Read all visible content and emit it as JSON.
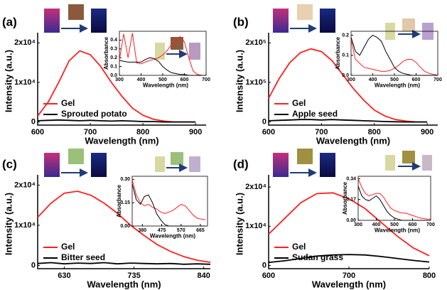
{
  "chart_data": [
    {
      "type": "line",
      "panel_label": "(a)",
      "xlabel": "Wavelength (nm)",
      "ylabel": "Intensity (a.u.)",
      "x": [
        600,
        620,
        640,
        660,
        680,
        700,
        720,
        740,
        760,
        780,
        800,
        820,
        840,
        860,
        880,
        900
      ],
      "series": [
        {
          "name": "Gel",
          "color": "#ff2020",
          "values": [
            1500,
            5000,
            10000,
            15500,
            18000,
            17000,
            14000,
            10000,
            6500,
            3500,
            1700,
            700,
            200,
            0,
            0,
            0
          ]
        },
        {
          "name": "Sprouted potato",
          "color": "#000000",
          "values": [
            300,
            400,
            500,
            400,
            300,
            400,
            300,
            200,
            300,
            200,
            100,
            100,
            0,
            0,
            0,
            0
          ]
        }
      ],
      "xlim": [
        600,
        920
      ],
      "ylim": [
        -800,
        21500
      ],
      "xticks": [
        600,
        700,
        800,
        900
      ],
      "yticks": [
        0,
        {
          "value": 10000,
          "label": "1x10⁴"
        },
        {
          "value": 20000,
          "label": "2x10⁴"
        }
      ]
    },
    {
      "type": "line",
      "panel_label": "(b)",
      "xlabel": "Wavelength (nm)",
      "ylabel": "Intensity (a.u.)",
      "x": [
        600,
        620,
        640,
        660,
        680,
        700,
        720,
        740,
        760,
        780,
        800,
        820,
        840,
        860,
        880,
        900
      ],
      "series": [
        {
          "name": "Gel",
          "color": "#ff2020",
          "values": [
            60000,
            110000,
            150000,
            175000,
            185000,
            178000,
            155000,
            120000,
            85000,
            55000,
            30000,
            15000,
            6000,
            2000,
            0,
            0
          ]
        },
        {
          "name": "Apple seed",
          "color": "#000000",
          "values": [
            3000,
            4000,
            5000,
            6000,
            6000,
            5000,
            6000,
            5000,
            4000,
            3000,
            2000,
            1000,
            500,
            0,
            0,
            0
          ]
        }
      ],
      "xlim": [
        600,
        920
      ],
      "ylim": [
        -8000,
        215000
      ],
      "xticks": [
        600,
        700,
        800,
        900
      ],
      "yticks": [
        0,
        {
          "value": 100000,
          "label": "1x10⁵"
        },
        {
          "value": 200000,
          "label": "2x10⁵"
        }
      ]
    },
    {
      "type": "line",
      "panel_label": "(c)",
      "xlabel": "Wavelength (nm)",
      "ylabel": "Intensity (a.u.)",
      "x": [
        590,
        610,
        630,
        650,
        670,
        690,
        710,
        730,
        750,
        770,
        790,
        810,
        830,
        850
      ],
      "series": [
        {
          "name": "Gel",
          "color": "#ff2020",
          "values": [
            12000,
            15500,
            18000,
            18500,
            17500,
            15500,
            13000,
            10000,
            7500,
            5200,
            3500,
            2200,
            1300,
            800
          ]
        },
        {
          "name": "Bitter seed",
          "color": "#000000",
          "values": [
            500,
            700,
            400,
            600,
            500,
            700,
            400,
            600,
            500,
            400,
            500,
            300,
            400,
            300
          ]
        }
      ],
      "xlim": [
        590,
        850
      ],
      "ylim": [
        -800,
        21500
      ],
      "xticks": [
        630,
        735,
        840
      ],
      "yticks": [
        0,
        {
          "value": 10000,
          "label": "1x10⁴"
        },
        {
          "value": 20000,
          "label": "2x10⁴"
        }
      ]
    },
    {
      "type": "line",
      "panel_label": "(d)",
      "xlabel": "Wavelength (nm)",
      "ylabel": "Intensity (a.u.)",
      "x": [
        600,
        620,
        640,
        660,
        680,
        700,
        720,
        740,
        760,
        780,
        800
      ],
      "series": [
        {
          "name": "Gel",
          "color": "#ff2020",
          "values": [
            8000,
            12000,
            16000,
            18300,
            18500,
            17000,
            14500,
            11000,
            7500,
            4500,
            2500
          ]
        },
        {
          "name": "Sudan grass",
          "color": "#000000",
          "values": [
            800,
            1200,
            1800,
            2400,
            2700,
            2800,
            2700,
            2300,
            1800,
            1300,
            900
          ]
        }
      ],
      "xlim": [
        600,
        800
      ],
      "ylim": [
        -800,
        22000
      ],
      "xticks": [
        600,
        700,
        800
      ],
      "yticks": [
        0,
        {
          "value": 10000,
          "label": "1x10⁴"
        },
        {
          "value": 20000,
          "label": "2x10⁴"
        }
      ]
    },
    {
      "type": "line",
      "xlabel": "Wavelength (nm)",
      "ylabel": "Absorbance",
      "x": [
        300,
        320,
        340,
        360,
        380,
        400,
        420,
        440,
        460,
        480,
        500,
        520,
        540,
        560,
        580,
        600,
        620,
        640,
        660,
        680,
        700
      ],
      "series": [
        {
          "color": "#ff2020",
          "values": [
            0.17,
            0.47,
            0.2,
            0.48,
            0.14,
            0.13,
            0.15,
            0.17,
            0.18,
            0.2,
            0.23,
            0.28,
            0.35,
            0.4,
            0.44,
            0.38,
            0.2,
            0.05,
            0.01,
            0,
            0
          ]
        },
        {
          "color": "#000000",
          "values": [
            0.17,
            0.16,
            0.15,
            0.15,
            0.15,
            0.15,
            0.18,
            0.2,
            0.19,
            0.16,
            0.1,
            0.06,
            0.03,
            0.02,
            0.01,
            0.01,
            0,
            0,
            0,
            0,
            0
          ]
        }
      ],
      "xlim": [
        300,
        700
      ],
      "ylim": [
        0,
        0.5
      ],
      "xticks": [
        300,
        400,
        500,
        600,
        700
      ],
      "yticks": [
        {
          "value": 0,
          "label": "0.0"
        },
        0.1,
        0.2,
        0.3,
        0.4
      ]
    },
    {
      "type": "line",
      "xlabel": "Wavelength (nm)",
      "ylabel": "Absorbance",
      "x": [
        300,
        320,
        340,
        360,
        380,
        400,
        420,
        440,
        460,
        480,
        500,
        520,
        540,
        560,
        580,
        600,
        620,
        640,
        660,
        680,
        700
      ],
      "series": [
        {
          "color": "#ff2020",
          "values": [
            0.18,
            0.08,
            0.06,
            0.04,
            0.035,
            0.03,
            0.025,
            0.02,
            0.02,
            0.025,
            0.035,
            0.05,
            0.07,
            0.08,
            0.08,
            0.065,
            0.04,
            0.02,
            0.01,
            0.005,
            0
          ]
        },
        {
          "color": "#000000",
          "values": [
            0.19,
            0.12,
            0.1,
            0.14,
            0.18,
            0.2,
            0.19,
            0.17,
            0.12,
            0.08,
            0.04,
            0.02,
            0.01,
            0.005,
            0,
            0,
            0,
            0,
            0,
            0,
            0
          ]
        }
      ],
      "xlim": [
        300,
        700
      ],
      "ylim": [
        0,
        0.22
      ],
      "xticks": [
        300,
        400,
        500,
        600,
        700
      ],
      "yticks": [
        {
          "value": 0,
          "label": "0.0"
        },
        0.1,
        0.2
      ]
    },
    {
      "type": "line",
      "xlabel": "Wavelength (nm)",
      "ylabel": "Absorbance",
      "x": [
        330,
        350,
        370,
        390,
        410,
        430,
        450,
        470,
        490,
        510,
        530,
        550,
        570,
        590,
        610,
        630,
        650,
        670,
        690
      ],
      "series": [
        {
          "color": "#ff2020",
          "values": [
            0.3,
            0.2,
            0.15,
            0.13,
            0.14,
            0.12,
            0.11,
            0.09,
            0.08,
            0.09,
            0.1,
            0.12,
            0.14,
            0.13,
            0.1,
            0.07,
            0.05,
            0.045,
            0.04
          ]
        },
        {
          "color": "#000000",
          "values": [
            0.27,
            0.17,
            0.14,
            0.19,
            0.2,
            0.15,
            0.08,
            0.04,
            0.01,
            0,
            0,
            0,
            0,
            0,
            0,
            0,
            0,
            0,
            0
          ]
        }
      ],
      "xlim": [
        330,
        700
      ],
      "ylim": [
        0,
        0.32
      ],
      "xticks": [
        380,
        475,
        570,
        665
      ],
      "yticks": [
        {
          "value": 0,
          "label": "0.00"
        },
        0.15,
        {
          "value": 0.3,
          "label": "0.30"
        }
      ]
    },
    {
      "type": "line",
      "xlabel": "Wavelength (nm)",
      "ylabel": "Absorbance",
      "x": [
        300,
        320,
        340,
        360,
        380,
        400,
        420,
        440,
        460,
        480,
        500,
        520,
        540,
        560,
        580,
        600,
        620,
        640,
        660,
        680,
        700
      ],
      "series": [
        {
          "color": "#ff2020",
          "values": [
            0.34,
            0.27,
            0.22,
            0.2,
            0.21,
            0.22,
            0.22,
            0.19,
            0.14,
            0.1,
            0.08,
            0.07,
            0.06,
            0.06,
            0.05,
            0.04,
            0.03,
            0.02,
            0.015,
            0.01,
            0.01
          ]
        },
        {
          "color": "#000000",
          "values": [
            0.28,
            0.2,
            0.17,
            0.16,
            0.18,
            0.2,
            0.17,
            0.12,
            0.07,
            0.04,
            0.02,
            0.01,
            0,
            0,
            0,
            0,
            0,
            0,
            0,
            0,
            0
          ]
        }
      ],
      "xlim": [
        300,
        700
      ],
      "ylim": [
        0,
        0.36
      ],
      "xticks": [
        300,
        400,
        500,
        600,
        700
      ],
      "yticks": [
        {
          "value": 0,
          "label": "0.00"
        },
        0.17,
        0.34
      ]
    }
  ]
}
